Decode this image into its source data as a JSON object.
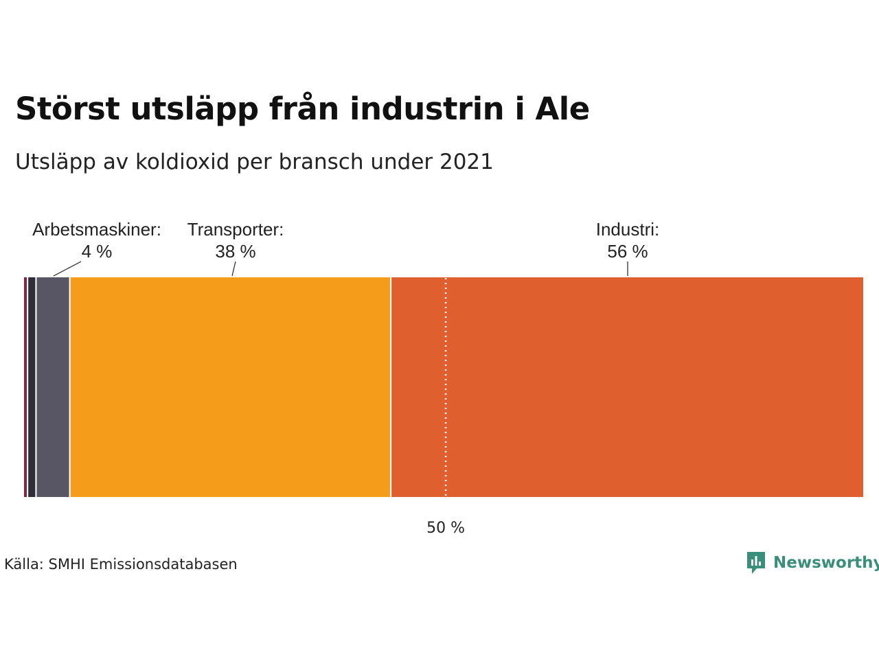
{
  "title": "Störst utsläpp från industrin i Ale",
  "subtitle": "Utsläpp av koldioxid per bransch under 2021",
  "source": "Källa: SMHI Emissionsdatabasen",
  "brand": {
    "name": "Newsworthy",
    "color": "#3a8f7a",
    "icon": "newsworthy-logo-icon"
  },
  "chart_data": {
    "type": "bar",
    "orientation": "stacked-100-percent",
    "title": "Störst utsläpp från industrin i Ale",
    "subtitle": "Utsläpp av koldioxid per bransch under 2021",
    "series": [
      {
        "value": 0.5,
        "color": "#8a2040"
      },
      {
        "value": 1.0,
        "color": "#2e2d3a"
      },
      {
        "value": 4,
        "color": "#585565",
        "label_name": "Arbetsmaskiner:",
        "label_value": "4 %"
      },
      {
        "value": 38,
        "color": "#f59d1a",
        "label_name": "Transporter:",
        "label_value": "38 %"
      },
      {
        "value": 56,
        "color": "#e05f2f",
        "label_name": "Industri:",
        "label_value": "56 %"
      }
    ],
    "reference_line": {
      "value": 50,
      "label": "50 %"
    },
    "xlim": [
      0,
      100
    ]
  }
}
